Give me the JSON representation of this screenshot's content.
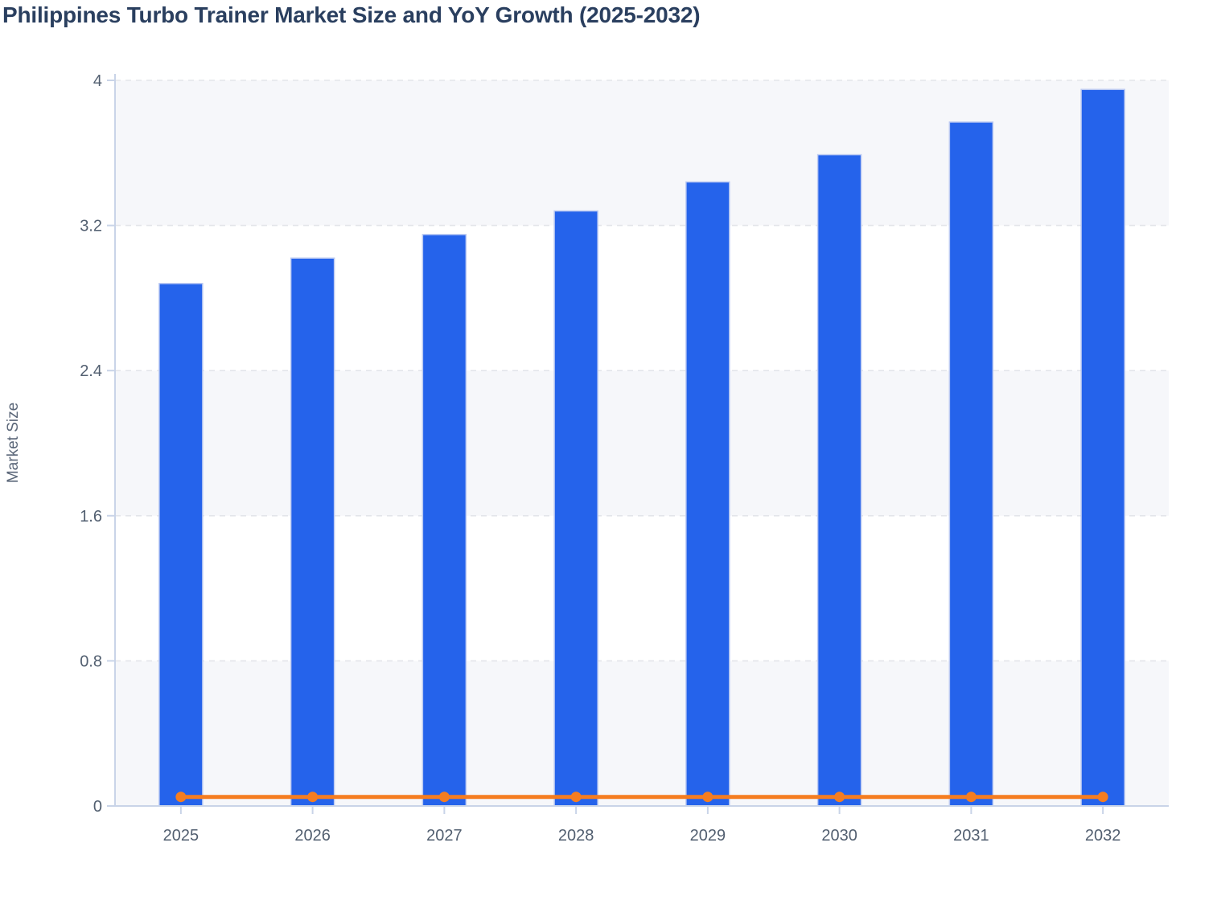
{
  "title": "Philippines Turbo Trainer Market Size and YoY Growth (2025-2032)",
  "colors": {
    "bar": "#2563eb",
    "bar_stroke": "#b9c8f2",
    "line": "#f57d20",
    "band": "#f6f7fa",
    "grid": "#e3e5ea",
    "axis": "#c9d4e8",
    "tick_text": "#525f70",
    "title_text": "#2a3f5f"
  },
  "chart_data": {
    "type": "bar",
    "title": "Philippines Turbo Trainer Market Size and YoY Growth (2025-2032)",
    "categories": [
      "2025",
      "2026",
      "2027",
      "2028",
      "2029",
      "2030",
      "2031",
      "2032"
    ],
    "series": [
      {
        "name": "Market Size",
        "type": "bar",
        "values": [
          2.88,
          3.02,
          3.15,
          3.28,
          3.44,
          3.59,
          3.77,
          3.95
        ]
      },
      {
        "name": "YoY Growth",
        "type": "line",
        "values": [
          0.05,
          0.05,
          0.05,
          0.05,
          0.05,
          0.05,
          0.05,
          0.05
        ]
      }
    ],
    "xlabel": "",
    "ylabel": "Market Size",
    "ylim": [
      0,
      4
    ],
    "yticks": [
      0,
      0.8,
      1.6,
      2.4,
      3.2,
      4
    ],
    "ytick_labels": [
      "0",
      "0.8",
      "1.6",
      "2.4",
      "3.2",
      "4"
    ],
    "grid": "horizontal dashed",
    "band_shading": "alternating horizontal bands",
    "legend": "none"
  }
}
